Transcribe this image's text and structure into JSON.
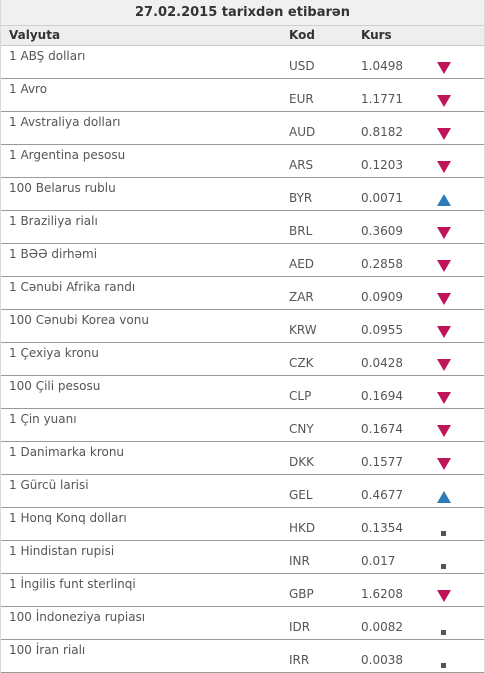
{
  "header": {
    "date_title": "27.02.2015 tarixdən etibarən"
  },
  "columns": {
    "currency": "Valyuta",
    "code": "Kod",
    "rate": "Kurs"
  },
  "colors": {
    "down": "#c0145a",
    "up": "#2e7bb8",
    "same": "#555555"
  },
  "rows": [
    {
      "name": "1 ABŞ dolları",
      "code": "USD",
      "rate": "1.0498",
      "trend": "down"
    },
    {
      "name": "1 Avro",
      "code": "EUR",
      "rate": "1.1771",
      "trend": "down"
    },
    {
      "name": "1 Avstraliya dolları",
      "code": "AUD",
      "rate": "0.8182",
      "trend": "down"
    },
    {
      "name": "1 Argentina pesosu",
      "code": "ARS",
      "rate": "0.1203",
      "trend": "down"
    },
    {
      "name": "100 Belarus rublu",
      "code": "BYR",
      "rate": "0.0071",
      "trend": "up"
    },
    {
      "name": "1 Braziliya rialı",
      "code": "BRL",
      "rate": "0.3609",
      "trend": "down"
    },
    {
      "name": "1 BƏƏ dirhəmi",
      "code": "AED",
      "rate": "0.2858",
      "trend": "down"
    },
    {
      "name": "1 Cənubi Afrika randı",
      "code": "ZAR",
      "rate": "0.0909",
      "trend": "down"
    },
    {
      "name": "100 Cənubi Korea vonu",
      "code": "KRW",
      "rate": "0.0955",
      "trend": "down"
    },
    {
      "name": "1 Çexiya kronu",
      "code": "CZK",
      "rate": "0.0428",
      "trend": "down"
    },
    {
      "name": "100 Çili pesosu",
      "code": "CLP",
      "rate": "0.1694",
      "trend": "down"
    },
    {
      "name": "1 Çin yuanı",
      "code": "CNY",
      "rate": "0.1674",
      "trend": "down"
    },
    {
      "name": "1 Danimarka kronu",
      "code": "DKK",
      "rate": "0.1577",
      "trend": "down"
    },
    {
      "name": "1 Gürcü larisi",
      "code": "GEL",
      "rate": "0.4677",
      "trend": "up"
    },
    {
      "name": "1 Honq Konq dolları",
      "code": "HKD",
      "rate": "0.1354",
      "trend": "same"
    },
    {
      "name": "1 Hindistan rupisi",
      "code": "INR",
      "rate": "0.017",
      "trend": "same"
    },
    {
      "name": "1 İngilis funt sterlinqi",
      "code": "GBP",
      "rate": "1.6208",
      "trend": "down"
    },
    {
      "name": "100 İndoneziya rupiası",
      "code": "IDR",
      "rate": "0.0082",
      "trend": "same"
    },
    {
      "name": "100 İran rialı",
      "code": "IRR",
      "rate": "0.0038",
      "trend": "same"
    }
  ]
}
